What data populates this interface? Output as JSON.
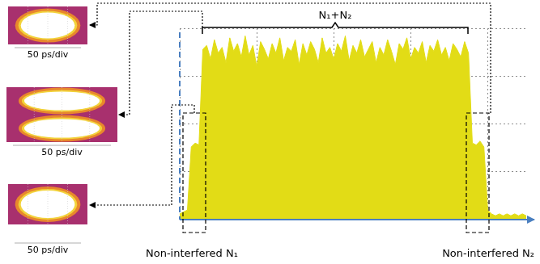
{
  "chart_data": {
    "type": "area",
    "x": [
      0,
      0.05,
      0.1,
      0.15,
      0.2,
      0.25,
      0.3,
      0.35,
      0.4,
      0.45,
      0.5,
      0.55,
      0.6,
      0.65,
      0.7,
      0.75,
      0.8,
      0.85,
      0.9,
      0.95,
      1,
      1.05,
      1.1,
      1.15,
      1.2,
      1.25,
      1.3,
      1.35,
      1.4,
      1.45,
      1.5,
      1.55,
      1.6,
      1.65,
      1.7,
      1.75,
      1.8,
      1.85,
      1.9,
      1.95,
      2,
      2.05,
      2.1,
      2.15,
      2.2,
      2.25,
      2.3,
      2.35,
      2.4,
      2.45,
      2.5,
      2.55,
      2.6,
      2.65,
      2.7,
      2.75,
      2.8,
      2.85,
      2.9,
      2.95,
      3,
      3.05,
      3.1,
      3.15,
      3.2,
      3.25,
      3.3,
      3.35,
      3.4,
      3.45,
      3.5,
      3.55,
      3.6,
      3.65,
      3.7,
      3.75,
      3.8,
      3.85,
      3.9,
      3.95,
      4,
      4.05,
      4.1,
      4.15,
      4.2,
      4.25,
      4.3,
      4.35,
      4.4,
      4.45,
      4.5
    ],
    "values": [
      0.3,
      0.4,
      0.5,
      3.8,
      4.0,
      3.9,
      8.9,
      9.1,
      8.4,
      9.4,
      8.7,
      9.0,
      8.2,
      9.5,
      8.8,
      9.2,
      8.5,
      9.6,
      8.6,
      9.1,
      8.0,
      9.3,
      8.9,
      8.4,
      9.2,
      8.7,
      9.5,
      8.3,
      9.0,
      8.8,
      9.4,
      8.1,
      9.2,
      8.6,
      9.3,
      8.9,
      8.2,
      9.5,
      8.7,
      9.0,
      8.4,
      9.2,
      8.8,
      9.6,
      8.3,
      9.1,
      8.7,
      9.4,
      8.5,
      8.9,
      9.3,
      8.2,
      9.0,
      8.6,
      9.4,
      8.8,
      8.1,
      9.2,
      8.9,
      9.5,
      8.4,
      9.0,
      8.7,
      9.3,
      8.2,
      9.1,
      8.8,
      9.4,
      8.6,
      9.0,
      8.3,
      9.2,
      8.9,
      8.5,
      9.3,
      8.7,
      4.0,
      3.9,
      4.1,
      3.8,
      0.5,
      0.3,
      0.2,
      0.3,
      0.2,
      0.3,
      0.2,
      0.3,
      0.2,
      0.3,
      0.2
    ],
    "color": "#e2dc16",
    "xlim": [
      0,
      4.5
    ],
    "xticks": [
      0,
      1,
      2,
      3,
      4
    ],
    "ylim": [
      0,
      10
    ],
    "yticks": [
      0,
      2.5,
      5,
      7.5,
      10
    ],
    "grid": true,
    "tick_labels": false,
    "annotations": {
      "total": "N₁+N₂",
      "left": "Non-interfered N₁",
      "right": "Non-interfered N₂"
    },
    "insets": [
      {
        "label": "50 ps/div",
        "eyes": 1
      },
      {
        "label": "50 ps/div",
        "eyes": 2
      },
      {
        "label": "50 ps/div",
        "eyes": 1
      }
    ]
  }
}
